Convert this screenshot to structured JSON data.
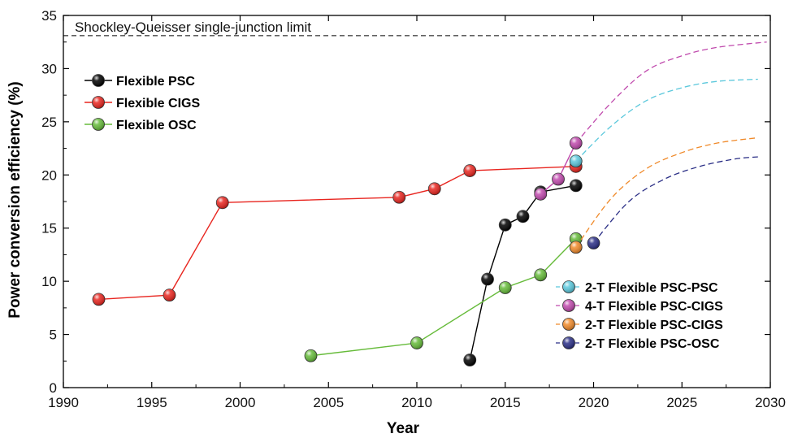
{
  "chart_data": {
    "type": "scatter",
    "title": "",
    "xlabel": "Year",
    "ylabel": "Power conversion efficiency (%)",
    "xlim": [
      1990,
      2030
    ],
    "ylim": [
      0,
      35
    ],
    "xticks": [
      "1990",
      "1995",
      "2000",
      "2005",
      "2010",
      "2015",
      "2020",
      "2025",
      "2030"
    ],
    "yticks": [
      "0",
      "5",
      "10",
      "15",
      "20",
      "25",
      "30",
      "35"
    ],
    "grid": false,
    "annotations": [
      {
        "text": "Shockley-Queisser single-junction limit",
        "y": 33.1,
        "style": "dashed",
        "color": "#000000"
      }
    ],
    "series": [
      {
        "name": "Flexible PSC",
        "color": "#000000",
        "line": "solid",
        "legend": "top-left",
        "x": [
          2013,
          2014,
          2015,
          2016,
          2017,
          2019
        ],
        "y": [
          2.6,
          10.2,
          15.3,
          16.1,
          18.4,
          19.0
        ]
      },
      {
        "name": "Flexible CIGS",
        "color": "#e8251f",
        "line": "solid",
        "legend": "top-left",
        "x": [
          1992,
          1996,
          1999,
          2009,
          2011,
          2013,
          2019
        ],
        "y": [
          8.3,
          8.7,
          17.4,
          17.9,
          18.7,
          20.4,
          20.8
        ]
      },
      {
        "name": "Flexible OSC",
        "color": "#66bb3a",
        "line": "solid",
        "legend": "top-left",
        "x": [
          2004,
          2010,
          2015,
          2017,
          2019
        ],
        "y": [
          3.0,
          4.2,
          9.4,
          10.6,
          14.0
        ]
      },
      {
        "name": "2-T Flexible PSC-PSC",
        "color": "#5bc8dc",
        "line": "dashed-projection",
        "legend": "bottom-right",
        "x": [
          2019
        ],
        "y": [
          21.3
        ],
        "projection": {
          "x": [
            2019,
            2021,
            2023,
            2025,
            2027,
            2029.3
          ],
          "y": [
            21.3,
            24.6,
            27.0,
            28.2,
            28.8,
            29.0
          ]
        }
      },
      {
        "name": "4-T Flexible PSC-CIGS",
        "color": "#c04aad",
        "line": "solid",
        "legend": "bottom-right",
        "x": [
          2017,
          2018,
          2019
        ],
        "y": [
          18.2,
          19.6,
          23.0
        ],
        "projection": {
          "x": [
            2019,
            2021,
            2023,
            2025,
            2027,
            2029.8
          ],
          "y": [
            23.0,
            26.8,
            29.8,
            31.2,
            32.0,
            32.5
          ]
        }
      },
      {
        "name": "2-T Flexible PSC-CIGS",
        "color": "#f08a2a",
        "line": "dashed-projection",
        "legend": "bottom-right",
        "x": [
          2019
        ],
        "y": [
          13.2
        ],
        "projection": {
          "x": [
            2019,
            2021,
            2023,
            2025,
            2027,
            2029.3
          ],
          "y": [
            13.2,
            17.8,
            20.6,
            22.1,
            23.0,
            23.5
          ]
        }
      },
      {
        "name": "2-T Flexible PSC-OSC",
        "color": "#2b2f86",
        "line": "dashed-projection",
        "legend": "bottom-right",
        "x": [
          2020
        ],
        "y": [
          13.6
        ],
        "projection": {
          "x": [
            2020,
            2022,
            2024,
            2026,
            2028,
            2029.3
          ],
          "y": [
            13.6,
            17.5,
            19.6,
            20.8,
            21.5,
            21.7
          ]
        }
      }
    ]
  }
}
